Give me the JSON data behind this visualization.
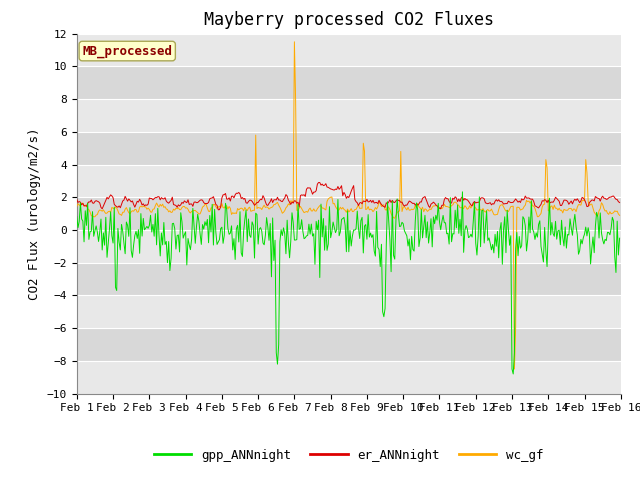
{
  "title": "Mayberry processed CO2 Fluxes",
  "ylabel": "CO2 Flux (urology/m2/s)",
  "ylim": [
    -10,
    12
  ],
  "yticks": [
    -10,
    -8,
    -6,
    -4,
    -2,
    0,
    2,
    4,
    6,
    8,
    10,
    12
  ],
  "xlim": [
    0,
    450
  ],
  "xtick_labels": [
    "Feb 1",
    "Feb 2",
    "Feb 3",
    "Feb 4",
    "Feb 5",
    "Feb 6",
    "Feb 7",
    "Feb 8",
    "Feb 9",
    "Feb 10",
    "Feb 11",
    "Feb 12",
    "Feb 13",
    "Feb 14",
    "Feb 15",
    "Feb 16"
  ],
  "xtick_positions": [
    0,
    30,
    60,
    90,
    120,
    150,
    180,
    210,
    240,
    270,
    300,
    330,
    360,
    390,
    420,
    450
  ],
  "color_gpp": "#00dd00",
  "color_er": "#dd0000",
  "color_wc": "#ffaa00",
  "legend_labels": [
    "gpp_ANNnight",
    "er_ANNnight",
    "wc_gf"
  ],
  "annotation_text": "MB_processed",
  "annotation_color": "#8b0000",
  "annotation_bg": "#ffffcc",
  "band_colors": [
    "#e8e8e8",
    "#d8d8d8"
  ],
  "title_fontsize": 12,
  "axis_fontsize": 9,
  "tick_fontsize": 8,
  "n_points": 450,
  "seed": 42
}
